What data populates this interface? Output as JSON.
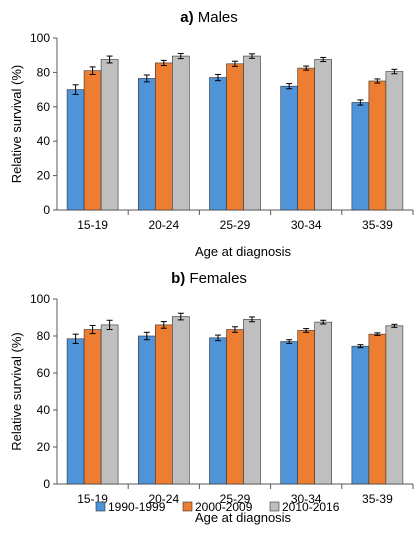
{
  "chart_data": [
    {
      "type": "bar",
      "title_prefix": "a)",
      "title": "Males",
      "xlabel": "Age at diagnosis",
      "ylabel": "Relative survival (%)",
      "ylim": [
        0,
        100
      ],
      "yticks": [
        0,
        20,
        40,
        60,
        80,
        100
      ],
      "categories": [
        "15-19",
        "20-24",
        "25-29",
        "30-34",
        "35-39"
      ],
      "series": [
        {
          "name": "1990-1999",
          "color": "#4f93d8",
          "values": [
            70,
            76.5,
            77,
            72,
            62.5
          ],
          "errors": [
            2.8,
            2,
            1.8,
            1.5,
            1.5
          ]
        },
        {
          "name": "2000-2009",
          "color": "#ed7d31",
          "values": [
            81,
            85.5,
            85,
            82.5,
            75
          ],
          "errors": [
            2.2,
            1.5,
            1.5,
            1.2,
            1.2
          ]
        },
        {
          "name": "2010-2016",
          "color": "#bfbfbf",
          "values": [
            87.5,
            89.5,
            89.5,
            87.5,
            80.5
          ],
          "errors": [
            2,
            1.5,
            1.3,
            1.2,
            1.3
          ]
        }
      ],
      "grid": false
    },
    {
      "type": "bar",
      "title_prefix": "b)",
      "title": "Females",
      "xlabel": "Age at diagnosis",
      "ylabel": "Relative survival (%)",
      "ylim": [
        0,
        100
      ],
      "yticks": [
        0,
        20,
        40,
        60,
        80,
        100
      ],
      "categories": [
        "15-19",
        "20-24",
        "25-29",
        "30-34",
        "35-39"
      ],
      "series": [
        {
          "name": "1990-1999",
          "color": "#4f93d8",
          "values": [
            78.5,
            80,
            79,
            77,
            74.5
          ],
          "errors": [
            2.5,
            2,
            1.5,
            1,
            0.8
          ]
        },
        {
          "name": "2000-2009",
          "color": "#ed7d31",
          "values": [
            83.5,
            86,
            83.5,
            83,
            81
          ],
          "errors": [
            2.2,
            1.8,
            1.5,
            1,
            0.7
          ]
        },
        {
          "name": "2010-2016",
          "color": "#bfbfbf",
          "values": [
            86,
            90.5,
            89,
            87.5,
            85.5
          ],
          "errors": [
            2.5,
            1.8,
            1.3,
            1,
            0.8
          ]
        }
      ],
      "grid": false
    }
  ],
  "legend": {
    "placement": "bottom",
    "items": [
      {
        "label": "1990-1999",
        "color": "#4f93d8"
      },
      {
        "label": "2000-2009",
        "color": "#ed7d31"
      },
      {
        "label": "2010-2016",
        "color": "#bfbfbf"
      }
    ]
  }
}
